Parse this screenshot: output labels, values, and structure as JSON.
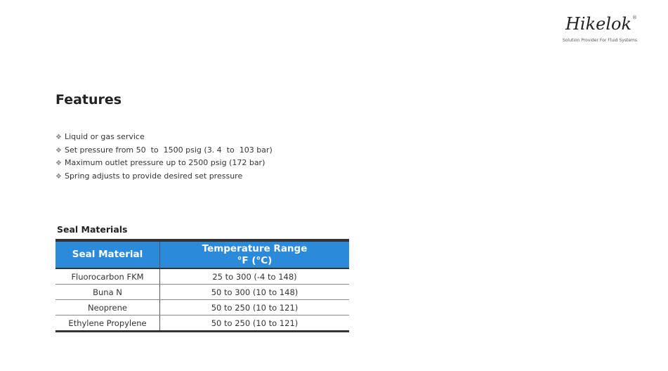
{
  "logo": {
    "wordmark": "Hikelok",
    "registered": "®",
    "tagline": "Solution Provider For Fluid Systems"
  },
  "features": {
    "title": "Features",
    "bullet_icon": "diamond-bullet-icon",
    "items": [
      "Liquid or gas service",
      "Set pressure from 50  to  1500 psig (3. 4  to  103 bar)",
      "Maximum outlet pressure up to 2500 psig (172 bar)",
      "Spring adjusts to provide desired set pressure"
    ]
  },
  "seal_materials": {
    "title": "Seal Materials",
    "header_color": "#2b8ad9",
    "columns": [
      "Seal Material",
      "Temperature Range",
      "°F (°C)"
    ],
    "rows": [
      [
        "Fluorocarbon FKM",
        "25 to 300  (-4 to 148)"
      ],
      [
        "Buna N",
        "50 to 300  (10 to 148)"
      ],
      [
        "Neoprene",
        "50 to 250  (10 to 121)"
      ],
      [
        "Ethylene Propylene",
        "50 to 250  (10 to 121)"
      ]
    ]
  }
}
